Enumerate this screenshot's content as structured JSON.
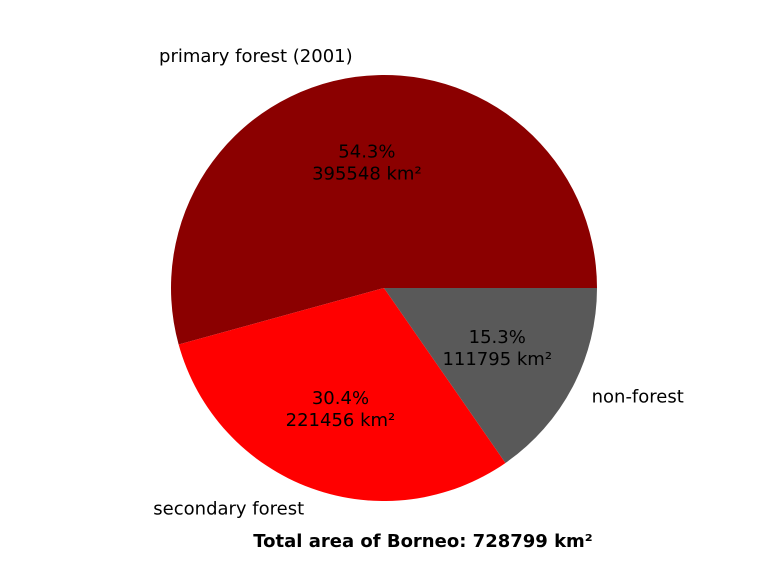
{
  "chart_data": {
    "type": "pie",
    "title": "Total area of Borneo: 728799 km²",
    "labels": [
      "primary forest (2001)",
      "secondary forest",
      "non-forest"
    ],
    "values": [
      395548,
      221456,
      111795
    ],
    "percent_labels": [
      "54.3%",
      "30.4%",
      "15.3%"
    ],
    "area_labels": [
      "395548 km²",
      "221456 km²",
      "111795 km²"
    ],
    "colors": [
      "#8b0000",
      "#ff0000",
      "#595959"
    ],
    "start_angle_deg": 0,
    "direction": "counterclockwise",
    "legend": "none"
  }
}
